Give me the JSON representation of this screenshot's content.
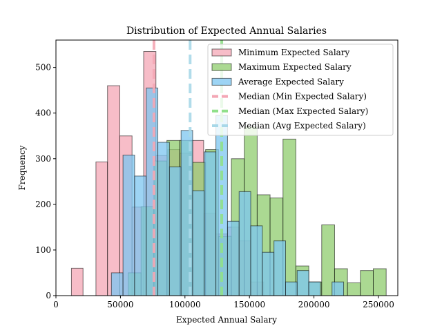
{
  "chart_data": {
    "type": "histogram",
    "title": "Distribution of Expected Annual Salaries",
    "xlabel": "Expected Annual Salary",
    "ylabel": "Frequency",
    "xlim": [
      0,
      265000
    ],
    "ylim": [
      0,
      560
    ],
    "xticks": [
      0,
      50000,
      100000,
      150000,
      200000,
      250000
    ],
    "xtick_labels": [
      "0",
      "50000",
      "100000",
      "150000",
      "200000",
      "250000"
    ],
    "yticks": [
      0,
      100,
      200,
      300,
      400,
      500
    ],
    "ytick_labels": [
      "0",
      "100",
      "200",
      "300",
      "400",
      "500"
    ],
    "grid": false,
    "legend_position": "upper right",
    "series": [
      {
        "name": "Minimum Expected Salary",
        "color": "#F4A7B5",
        "bins": [
          {
            "x0": 12000,
            "x1": 21000,
            "count": 60
          },
          {
            "x0": 31000,
            "x1": 40000,
            "count": 293
          },
          {
            "x0": 40000,
            "x1": 49500,
            "count": 460
          },
          {
            "x0": 49500,
            "x1": 59000,
            "count": 350
          },
          {
            "x0": 59000,
            "x1": 68000,
            "count": 194
          },
          {
            "x0": 68000,
            "x1": 77500,
            "count": 535
          },
          {
            "x0": 77500,
            "x1": 86500,
            "count": 307
          },
          {
            "x0": 86500,
            "x1": 96000,
            "count": 320
          },
          {
            "x0": 96000,
            "x1": 105000,
            "count": 312
          },
          {
            "x0": 105000,
            "x1": 114500,
            "count": 340
          },
          {
            "x0": 114500,
            "x1": 124000,
            "count": 180
          },
          {
            "x0": 124000,
            "x1": 133000,
            "count": 135
          },
          {
            "x0": 133000,
            "x1": 142000,
            "count": 150
          },
          {
            "x0": 142000,
            "x1": 151000,
            "count": 120
          },
          {
            "x0": 151000,
            "x1": 161000,
            "count": 30
          }
        ]
      },
      {
        "name": "Maximum Expected Salary",
        "color": "#8FCC6E",
        "bins": [
          {
            "x0": 56000,
            "x1": 66000,
            "count": 50
          },
          {
            "x0": 66000,
            "x1": 76000,
            "count": 195
          },
          {
            "x0": 76000,
            "x1": 86000,
            "count": 295
          },
          {
            "x0": 86000,
            "x1": 96000,
            "count": 340
          },
          {
            "x0": 96000,
            "x1": 106000,
            "count": 340
          },
          {
            "x0": 106000,
            "x1": 116000,
            "count": 292
          },
          {
            "x0": 116000,
            "x1": 126000,
            "count": 320
          },
          {
            "x0": 126000,
            "x1": 136000,
            "count": 130
          },
          {
            "x0": 136000,
            "x1": 146000,
            "count": 300
          },
          {
            "x0": 146000,
            "x1": 156000,
            "count": 370
          },
          {
            "x0": 156000,
            "x1": 166000,
            "count": 221
          },
          {
            "x0": 166000,
            "x1": 176000,
            "count": 214
          },
          {
            "x0": 176000,
            "x1": 186000,
            "count": 343
          },
          {
            "x0": 186000,
            "x1": 196000,
            "count": 65
          },
          {
            "x0": 196000,
            "x1": 206000,
            "count": 30
          },
          {
            "x0": 206000,
            "x1": 216000,
            "count": 155
          },
          {
            "x0": 216000,
            "x1": 226000,
            "count": 59
          },
          {
            "x0": 226000,
            "x1": 236000,
            "count": 28
          },
          {
            "x0": 236000,
            "x1": 246000,
            "count": 55
          },
          {
            "x0": 246000,
            "x1": 256000,
            "count": 59
          }
        ]
      },
      {
        "name": "Average Expected Salary",
        "color": "#7CC6F0",
        "bins": [
          {
            "x0": 43000,
            "x1": 52000,
            "count": 50
          },
          {
            "x0": 52000,
            "x1": 61000,
            "count": 308
          },
          {
            "x0": 61000,
            "x1": 70000,
            "count": 262
          },
          {
            "x0": 70000,
            "x1": 79000,
            "count": 455
          },
          {
            "x0": 79000,
            "x1": 88000,
            "count": 336
          },
          {
            "x0": 88000,
            "x1": 97000,
            "count": 282
          },
          {
            "x0": 97000,
            "x1": 106000,
            "count": 362
          },
          {
            "x0": 106000,
            "x1": 115000,
            "count": 230
          },
          {
            "x0": 115000,
            "x1": 124000,
            "count": 315
          },
          {
            "x0": 124000,
            "x1": 133000,
            "count": 395
          },
          {
            "x0": 133000,
            "x1": 142000,
            "count": 163
          },
          {
            "x0": 142000,
            "x1": 151000,
            "count": 228
          },
          {
            "x0": 151000,
            "x1": 160000,
            "count": 153
          },
          {
            "x0": 160000,
            "x1": 169000,
            "count": 95
          },
          {
            "x0": 169000,
            "x1": 178000,
            "count": 120
          },
          {
            "x0": 178000,
            "x1": 187000,
            "count": 30
          },
          {
            "x0": 187000,
            "x1": 196000,
            "count": 55
          },
          {
            "x0": 196000,
            "x1": 205000,
            "count": 30
          },
          {
            "x0": 214000,
            "x1": 223000,
            "count": 30
          }
        ]
      }
    ],
    "median_lines": [
      {
        "name": "Median (Min Expected Salary)",
        "value": 76000,
        "color": "#F4A7B5"
      },
      {
        "name": "Median (Max Expected Salary)",
        "value": 128500,
        "color": "#90E08A"
      },
      {
        "name": "Median (Avg Expected Salary)",
        "value": 104000,
        "color": "#A8D8E8"
      }
    ],
    "legend": [
      {
        "label": "Minimum Expected Salary",
        "kind": "patch",
        "color": "#F4A7B5"
      },
      {
        "label": "Maximum Expected Salary",
        "kind": "patch",
        "color": "#8FCC6E"
      },
      {
        "label": "Average Expected Salary",
        "kind": "patch",
        "color": "#7CC6F0"
      },
      {
        "label": "Median (Min Expected Salary)",
        "kind": "line",
        "color": "#F4A7B5"
      },
      {
        "label": "Median (Max Expected Salary)",
        "kind": "line",
        "color": "#90E08A"
      },
      {
        "label": "Median (Avg Expected Salary)",
        "kind": "line",
        "color": "#A8D8E8"
      }
    ]
  }
}
